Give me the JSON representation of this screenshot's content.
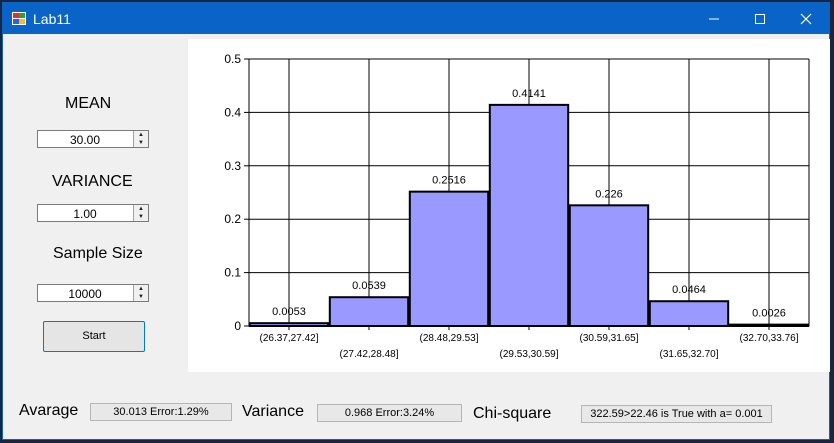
{
  "window": {
    "title": "Lab11",
    "minimize_icon": "minimize-icon",
    "maximize_icon": "maximize-icon",
    "close_icon": "close-icon"
  },
  "controls": {
    "mean_label": "MEAN",
    "mean_value": "30.00",
    "variance_label": "VARIANCE",
    "variance_value": "1.00",
    "sample_size_label": "Sample Size",
    "sample_size_value": "10000",
    "start_label": "Start"
  },
  "results": {
    "average_label": "Avarage",
    "average_value": "30.013 Error:1.29%",
    "variance_label": "Variance",
    "variance_value": "0.968 Error:3.24%",
    "chisq_label": "Chi-square",
    "chisq_value": "322.59>22.46 is True with a= 0.001"
  },
  "colors": {
    "bar_fill": "#9999ff",
    "bar_stroke": "#000000",
    "titlebar": "#0a64c8"
  },
  "chart_data": {
    "type": "bar",
    "categories": [
      "(26.37,27.42]",
      "(27.42,28.48]",
      "(28.48,29.53]",
      "(29.53,30.59]",
      "(30.59,31.65]",
      "(31.65,32.70]",
      "(32.70,33.76]"
    ],
    "values": [
      0.0053,
      0.0539,
      0.2516,
      0.4141,
      0.226,
      0.0464,
      0.0026
    ],
    "data_labels": [
      "0.0053",
      "0.0539",
      "0.2516",
      "0.4141",
      "0.226",
      "0.0464",
      "0.0026"
    ],
    "y_ticks": [
      "0",
      "0.1",
      "0.2",
      "0.3",
      "0.4",
      "0.5"
    ],
    "ylim": [
      0,
      0.5
    ],
    "grid": true
  }
}
